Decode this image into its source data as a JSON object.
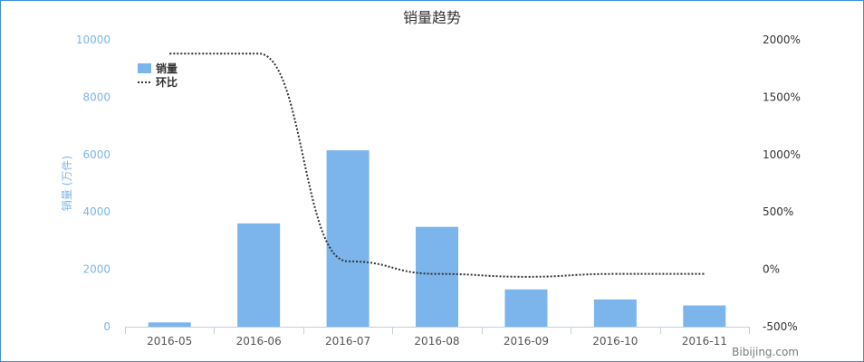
{
  "chart_data": {
    "type": "bar",
    "title": "销量趋势",
    "credit": "Bibijing.com",
    "categories": [
      "2016-05",
      "2016-06",
      "2016-07",
      "2016-08",
      "2016-09",
      "2016-10",
      "2016-11"
    ],
    "series": [
      {
        "name": "销量",
        "type": "bar",
        "axis": "left",
        "values": [
          150,
          3600,
          6150,
          3480,
          1300,
          950,
          740
        ],
        "color": "#7cb5ec"
      },
      {
        "name": "环比",
        "type": "line",
        "axis": "right",
        "style": "dotted",
        "values": [
          1880,
          1880,
          70,
          -40,
          -65,
          -40,
          -40
        ],
        "color": "#333333"
      }
    ],
    "ylabel": "销量 (万件)",
    "ylim": [
      0,
      10000
    ],
    "yticks": [
      "0",
      "2000",
      "4000",
      "6000",
      "8000",
      "10000"
    ],
    "y2lim": [
      -500,
      2000
    ],
    "y2ticks": [
      "-500%",
      "0%",
      "500%",
      "1000%",
      "1500%",
      "2000%"
    ],
    "legend": {
      "position": "top-left",
      "items": [
        "销量",
        "环比"
      ]
    },
    "grid": false
  }
}
